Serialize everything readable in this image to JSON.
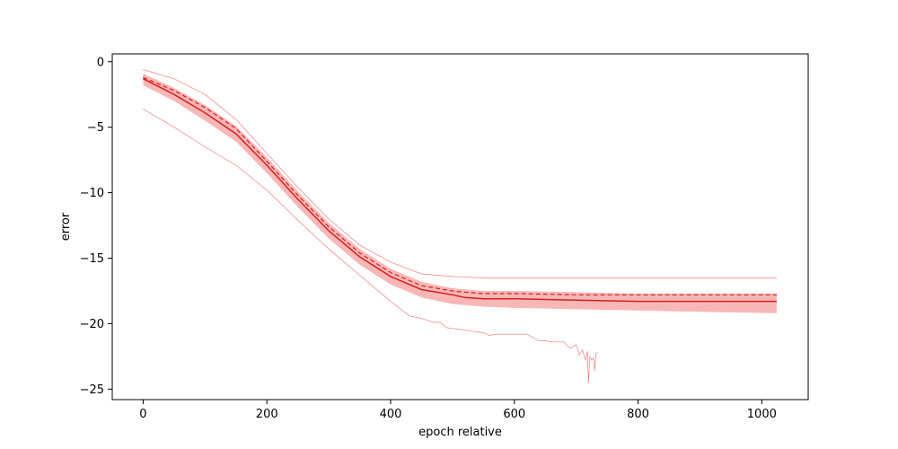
{
  "chart_data": {
    "type": "line",
    "title": "",
    "xlabel": "epoch relative",
    "ylabel": "error",
    "xlim": [
      -50,
      1075
    ],
    "ylim": [
      -25.8,
      0.6
    ],
    "xticks": [
      0,
      200,
      400,
      600,
      800,
      1000
    ],
    "yticks": [
      0,
      -5,
      -10,
      -15,
      -20,
      -25
    ],
    "xtick_labels": [
      "0",
      "200",
      "400",
      "600",
      "800",
      "1000"
    ],
    "ytick_labels": [
      "0",
      "−5",
      "−10",
      "−15",
      "−20",
      "−25"
    ],
    "grid": false,
    "colors": {
      "series": "#d62020",
      "band": "#f8b7b7",
      "thin": "#f08080"
    },
    "series": [
      {
        "style": "solid",
        "x": [
          0,
          50,
          100,
          150,
          200,
          250,
          300,
          350,
          400,
          450,
          500,
          520,
          550,
          600,
          700,
          800,
          900,
          1024
        ],
        "y": [
          -1.3,
          -2.5,
          -3.9,
          -5.5,
          -7.9,
          -10.5,
          -12.9,
          -14.9,
          -16.4,
          -17.4,
          -17.8,
          -18.0,
          -18.1,
          -18.1,
          -18.2,
          -18.3,
          -18.3,
          -18.3
        ]
      },
      {
        "style": "dashed",
        "x": [
          0,
          50,
          100,
          150,
          200,
          250,
          300,
          350,
          400,
          450,
          500,
          520,
          550,
          600,
          700,
          800,
          900,
          1024
        ],
        "y": [
          -1.2,
          -2.2,
          -3.5,
          -5.1,
          -7.6,
          -10.2,
          -12.6,
          -14.6,
          -16.1,
          -17.1,
          -17.5,
          -17.6,
          -17.7,
          -17.7,
          -17.8,
          -17.8,
          -17.8,
          -17.8
        ]
      },
      {
        "style": "band",
        "x": [
          0,
          50,
          100,
          150,
          200,
          250,
          300,
          350,
          400,
          450,
          500,
          550,
          600,
          700,
          800,
          900,
          1024
        ],
        "y_upper": [
          -0.9,
          -2.0,
          -3.3,
          -4.9,
          -7.3,
          -9.9,
          -12.3,
          -14.3,
          -15.8,
          -16.8,
          -17.3,
          -17.5,
          -17.5,
          -17.6,
          -17.7,
          -17.7,
          -17.7
        ],
        "y_lower": [
          -1.8,
          -3.0,
          -4.5,
          -6.1,
          -8.5,
          -11.1,
          -13.5,
          -15.5,
          -17.0,
          -18.0,
          -18.5,
          -18.7,
          -18.8,
          -18.9,
          -19.0,
          -19.1,
          -19.2
        ]
      },
      {
        "style": "thin",
        "x": [
          0,
          50,
          100,
          150,
          200,
          250,
          300,
          350,
          400,
          450,
          500,
          550,
          600,
          700,
          800,
          900,
          1024
        ],
        "y": [
          -0.6,
          -1.3,
          -2.5,
          -4.4,
          -7.0,
          -9.6,
          -12.0,
          -14.0,
          -15.3,
          -16.2,
          -16.4,
          -16.5,
          -16.5,
          -16.5,
          -16.5,
          -16.5,
          -16.5
        ]
      },
      {
        "style": "thin",
        "x": [
          0,
          50,
          100,
          150,
          200,
          250,
          300,
          350,
          400,
          430,
          450,
          470,
          480,
          490,
          520,
          550,
          560,
          570,
          580,
          620,
          640,
          650,
          660,
          680,
          690,
          700,
          705,
          710,
          715,
          718,
          720,
          722,
          725,
          728,
          730,
          732,
          735
        ],
        "y": [
          -3.6,
          -5.0,
          -6.5,
          -7.9,
          -9.8,
          -12.1,
          -14.3,
          -16.3,
          -18.3,
          -19.4,
          -19.6,
          -19.9,
          -19.9,
          -20.3,
          -20.5,
          -20.7,
          -20.9,
          -20.8,
          -20.8,
          -20.8,
          -21.3,
          -21.3,
          -21.4,
          -21.4,
          -21.9,
          -21.6,
          -22.4,
          -22.0,
          -22.8,
          -22.1,
          -24.5,
          -22.5,
          -22.8,
          -22.6,
          -23.6,
          -22.3,
          -22.2
        ]
      }
    ]
  }
}
